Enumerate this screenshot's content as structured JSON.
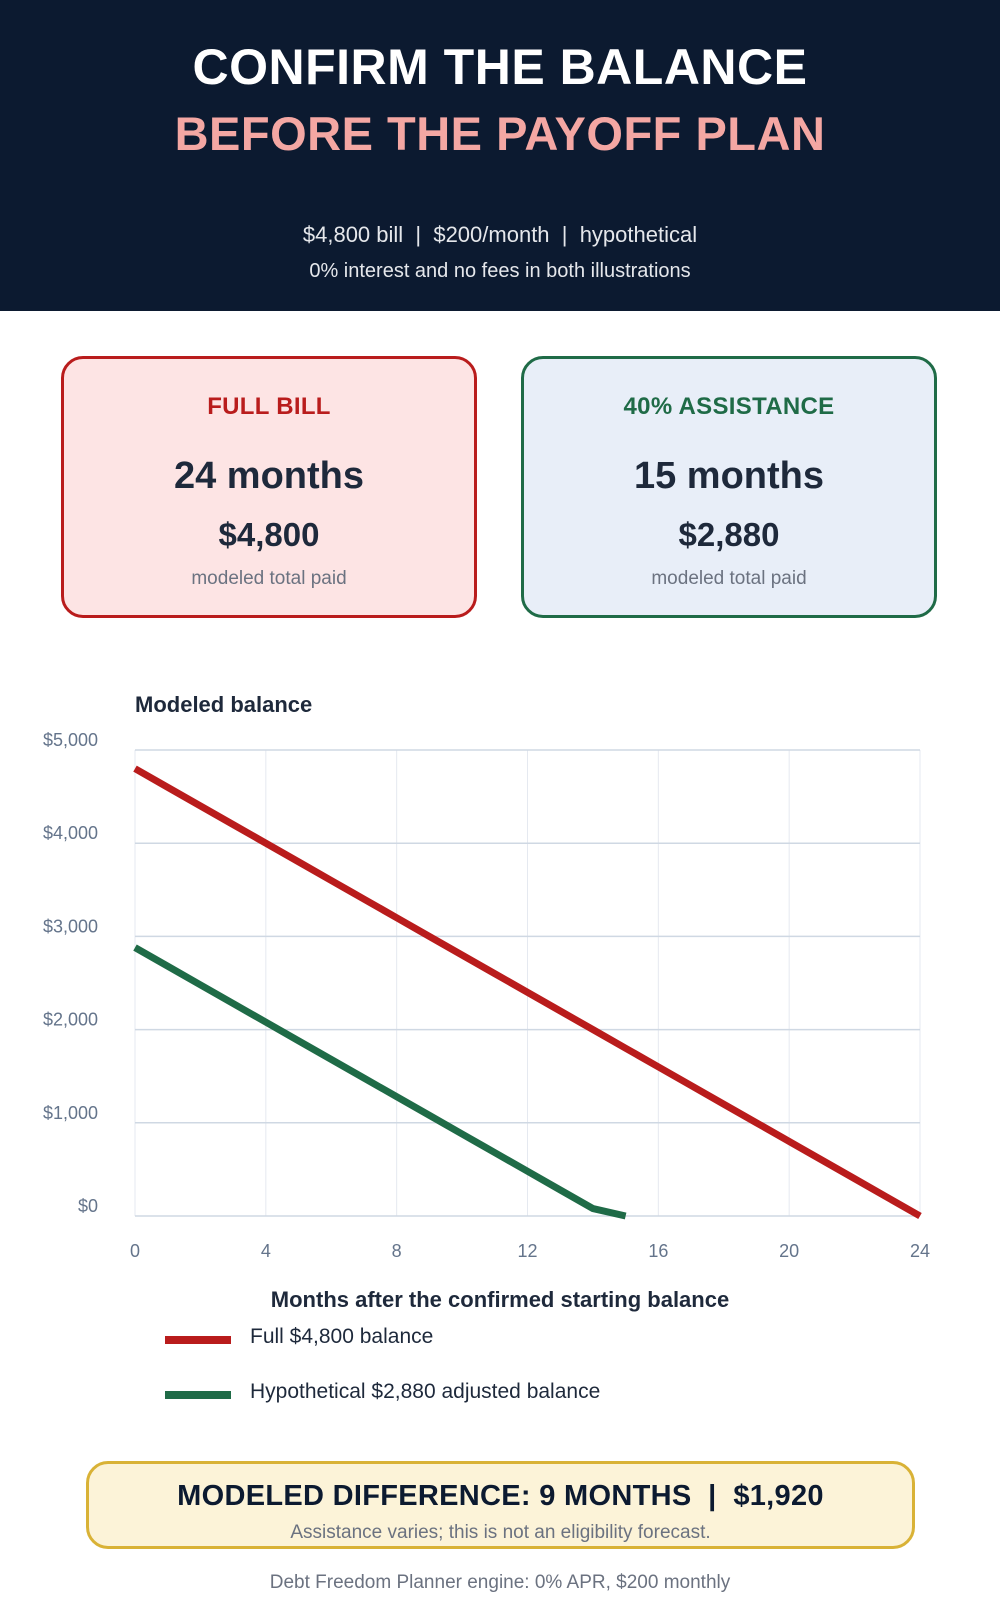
{
  "header": {
    "title_line1": "CONFIRM THE BALANCE",
    "title_line2": "BEFORE THE PAYOFF PLAN",
    "subtitle_line1": "$4,800 bill  |  $200/month  |  hypothetical",
    "subtitle_line2": "0% interest and no fees in both illustrations"
  },
  "cards": {
    "full": {
      "label": "FULL BILL",
      "months": "24 months",
      "amount": "$4,800",
      "note": "modeled total paid",
      "color": "#b91c1c"
    },
    "assist": {
      "label": "40% ASSISTANCE",
      "months": "15 months",
      "amount": "$2,880",
      "note": "modeled total paid",
      "color": "#1f6b47"
    }
  },
  "chart_data": {
    "type": "line",
    "title": "Modeled balance",
    "xlabel": "Months after the confirmed starting balance",
    "ylabel": "",
    "xlim": [
      0,
      24
    ],
    "ylim": [
      0,
      5000
    ],
    "xticks": [
      0,
      4,
      8,
      12,
      16,
      20,
      24
    ],
    "xtick_labels": [
      "0",
      "4",
      "8",
      "12",
      "16",
      "20",
      "24"
    ],
    "yticks": [
      0,
      1000,
      2000,
      3000,
      4000,
      5000
    ],
    "ytick_labels": [
      "$0",
      "$1,000",
      "$2,000",
      "$3,000",
      "$4,000",
      "$5,000"
    ],
    "grid": true,
    "legend_position": "bottom",
    "series": [
      {
        "name": "Full $4,800 balance",
        "color": "#b91c1c",
        "x": [
          0,
          1,
          2,
          3,
          4,
          5,
          6,
          7,
          8,
          9,
          10,
          11,
          12,
          13,
          14,
          15,
          16,
          17,
          18,
          19,
          20,
          21,
          22,
          23,
          24
        ],
        "y": [
          4800,
          4600,
          4400,
          4200,
          4000,
          3800,
          3600,
          3400,
          3200,
          3000,
          2800,
          2600,
          2400,
          2200,
          2000,
          1800,
          1600,
          1400,
          1200,
          1000,
          800,
          600,
          400,
          200,
          0
        ]
      },
      {
        "name": "Hypothetical $2,880 adjusted balance",
        "color": "#1f6b47",
        "x": [
          0,
          1,
          2,
          3,
          4,
          5,
          6,
          7,
          8,
          9,
          10,
          11,
          12,
          13,
          14,
          15
        ],
        "y": [
          2880,
          2680,
          2480,
          2280,
          2080,
          1880,
          1680,
          1480,
          1280,
          1080,
          880,
          680,
          480,
          280,
          80,
          0
        ]
      }
    ]
  },
  "callout": {
    "headline": "MODELED DIFFERENCE: 9 MONTHS  |  $1,920",
    "note": "Assistance varies; this is not an eligibility forecast."
  },
  "footer": {
    "text": "Debt Freedom Planner engine: 0% APR, $200 monthly"
  }
}
